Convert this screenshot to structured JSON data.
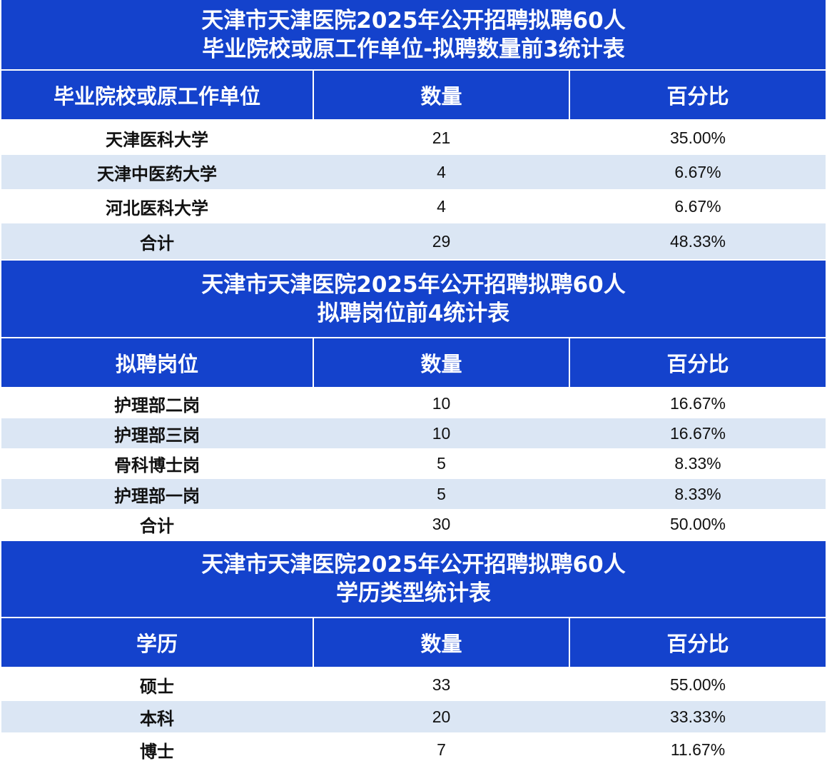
{
  "tables": [
    {
      "title_line1": "天津市天津医院2025年公开招聘拟聘60人",
      "title_line2": "毕业院校或原工作单位-拟聘数量前3统计表",
      "headers": [
        "毕业院校或原工作单位",
        "数量",
        "百分比"
      ],
      "rows": [
        [
          "天津医科大学",
          "21",
          "35.00%"
        ],
        [
          "天津中医药大学",
          "4",
          "6.67%"
        ],
        [
          "河北医科大学",
          "4",
          "6.67%"
        ],
        [
          "合计",
          "29",
          "48.33%"
        ]
      ]
    },
    {
      "title_line1": "天津市天津医院2025年公开招聘拟聘60人",
      "title_line2": "拟聘岗位前4统计表",
      "headers": [
        "拟聘岗位",
        "数量",
        "百分比"
      ],
      "rows": [
        [
          "护理部二岗",
          "10",
          "16.67%"
        ],
        [
          "护理部三岗",
          "10",
          "16.67%"
        ],
        [
          "骨科博士岗",
          "5",
          "8.33%"
        ],
        [
          "护理部一岗",
          "5",
          "8.33%"
        ],
        [
          "合计",
          "30",
          "50.00%"
        ]
      ]
    },
    {
      "title_line1": "天津市天津医院2025年公开招聘拟聘60人",
      "title_line2": "学历类型统计表",
      "headers": [
        "学历",
        "数量",
        "百分比"
      ],
      "rows": [
        [
          "硕士",
          "33",
          "55.00%"
        ],
        [
          "本科",
          "20",
          "33.33%"
        ],
        [
          "博士",
          "7",
          "11.67%"
        ]
      ]
    }
  ],
  "colors": {
    "header_blue": "#1442cc",
    "row_alt": "#dbe6f4",
    "row_plain": "#ffffff"
  }
}
